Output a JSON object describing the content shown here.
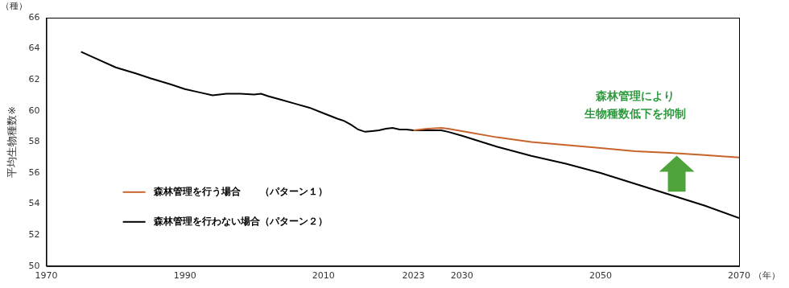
{
  "chart_data": {
    "type": "line",
    "y_label": "平均生物種数※",
    "y_unit": "（種）",
    "x_unit": "（年）",
    "annotation": [
      "森林管理により",
      "生物種数低下を抑制"
    ],
    "x": [
      1975,
      1977,
      1980,
      1983,
      1985,
      1988,
      1990,
      1992,
      1994,
      1996,
      1998,
      2000,
      2001,
      2002,
      2004,
      2006,
      2008,
      2010,
      2012,
      2013,
      2014,
      2015,
      2016,
      2017,
      2018,
      2019,
      2020,
      2021,
      2022,
      2023,
      2025,
      2027,
      2028,
      2030,
      2035,
      2040,
      2045,
      2050,
      2055,
      2060,
      2065,
      2070
    ],
    "series": [
      {
        "name": "森林管理を行う場合　　（パターン１）",
        "color": "#c8642a",
        "values": [
          null,
          null,
          null,
          null,
          null,
          null,
          null,
          null,
          null,
          null,
          null,
          null,
          null,
          null,
          null,
          null,
          null,
          null,
          null,
          null,
          null,
          null,
          null,
          null,
          null,
          null,
          null,
          null,
          null,
          58.75,
          58.85,
          58.9,
          58.85,
          58.7,
          58.3,
          58.0,
          57.8,
          57.6,
          57.4,
          57.3,
          57.15,
          57.0
        ]
      },
      {
        "name": "森林管理を行わない場合（パターン２）",
        "color": "#000000",
        "values": [
          63.8,
          63.4,
          62.8,
          62.4,
          62.1,
          61.7,
          61.4,
          61.2,
          61.0,
          61.1,
          61.1,
          61.05,
          61.1,
          60.95,
          60.7,
          60.45,
          60.2,
          59.85,
          59.5,
          59.35,
          59.1,
          58.8,
          58.65,
          58.7,
          58.75,
          58.85,
          58.9,
          58.8,
          58.8,
          58.75,
          58.75,
          58.75,
          58.65,
          58.4,
          57.7,
          57.1,
          56.6,
          56.0,
          55.3,
          54.6,
          53.9,
          53.1
        ]
      }
    ],
    "xlim": [
      1970,
      2070
    ],
    "xticks": [
      1970,
      1990,
      2010,
      2023,
      2030,
      2050,
      2070
    ],
    "ylim": [
      50,
      66
    ],
    "yticks": [
      50,
      52,
      54,
      56,
      58,
      60,
      62,
      64,
      66
    ],
    "grid": false,
    "legend": "lower left"
  }
}
